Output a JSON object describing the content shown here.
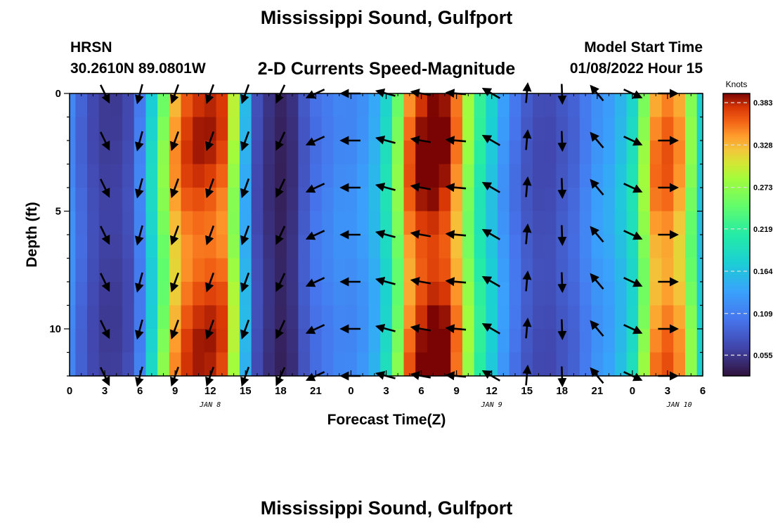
{
  "header": {
    "title": "Mississippi Sound, Gulfport",
    "station": "HRSN",
    "coords": "30.2610N  89.0801W",
    "plot_title": "2-D Currents Speed-Magnitude",
    "model_start_label": "Model Start Time",
    "model_start_value": "01/08/2022 Hour 15"
  },
  "footer": {
    "title": "Mississippi Sound, Gulfport"
  },
  "chart_data": {
    "type": "heatmap",
    "title": "2-D Currents Speed-Magnitude",
    "xlabel": "Forecast Time(Z)",
    "ylabel": "Depth (ft)",
    "x_range_hours": [
      0,
      54
    ],
    "y_range_ft": [
      0,
      12
    ],
    "x_ticks": [
      "0",
      "3",
      "6",
      "9",
      "12",
      "15",
      "18",
      "21",
      "0",
      "3",
      "6",
      "9",
      "12",
      "15",
      "18",
      "21",
      "0",
      "3",
      "6"
    ],
    "y_ticks": [
      0,
      5,
      10
    ],
    "date_labels": [
      {
        "label": "JAN 8",
        "hour": 12
      },
      {
        "label": "JAN 9",
        "hour": 36
      },
      {
        "label": "JAN 10",
        "hour": 52
      }
    ],
    "colorbar": {
      "unit": "Knots",
      "min": 0.028,
      "max": 0.395,
      "ticks": [
        "0.383",
        "0.328",
        "0.273",
        "0.219",
        "0.164",
        "0.109",
        "0.055"
      ]
    },
    "speed_profile_hours": [
      0,
      1,
      2,
      3,
      4,
      5,
      6,
      7,
      8,
      9,
      10,
      11,
      12,
      13,
      14,
      15,
      16,
      17,
      18,
      19,
      20,
      21,
      22,
      23,
      24,
      25,
      26,
      27,
      28,
      29,
      30,
      31,
      32,
      33,
      34,
      35,
      36,
      37,
      38,
      39,
      40,
      41,
      42,
      43,
      44,
      45,
      46,
      47,
      48,
      49,
      50,
      51,
      52,
      53,
      54
    ],
    "speed_profile_knots": [
      0.12,
      0.09,
      0.07,
      0.06,
      0.06,
      0.07,
      0.11,
      0.18,
      0.26,
      0.33,
      0.36,
      0.37,
      0.37,
      0.36,
      0.28,
      0.15,
      0.07,
      0.05,
      0.04,
      0.05,
      0.08,
      0.1,
      0.11,
      0.12,
      0.12,
      0.13,
      0.15,
      0.19,
      0.26,
      0.35,
      0.38,
      0.39,
      0.38,
      0.34,
      0.27,
      0.21,
      0.17,
      0.13,
      0.1,
      0.08,
      0.07,
      0.07,
      0.08,
      0.09,
      0.11,
      0.13,
      0.14,
      0.16,
      0.19,
      0.27,
      0.34,
      0.35,
      0.33,
      0.26,
      0.17
    ],
    "arrows": {
      "hours": [
        3,
        6,
        9,
        12,
        15,
        18,
        21,
        24,
        27,
        30,
        33,
        36,
        39,
        42,
        45,
        48,
        51
      ],
      "depths_ft": [
        0,
        2,
        4,
        6,
        8,
        10,
        12
      ],
      "directions_deg": [
        154,
        195,
        200,
        200,
        200,
        205,
        245,
        270,
        285,
        280,
        275,
        300,
        5,
        178,
        320,
        115,
        90
      ]
    }
  }
}
